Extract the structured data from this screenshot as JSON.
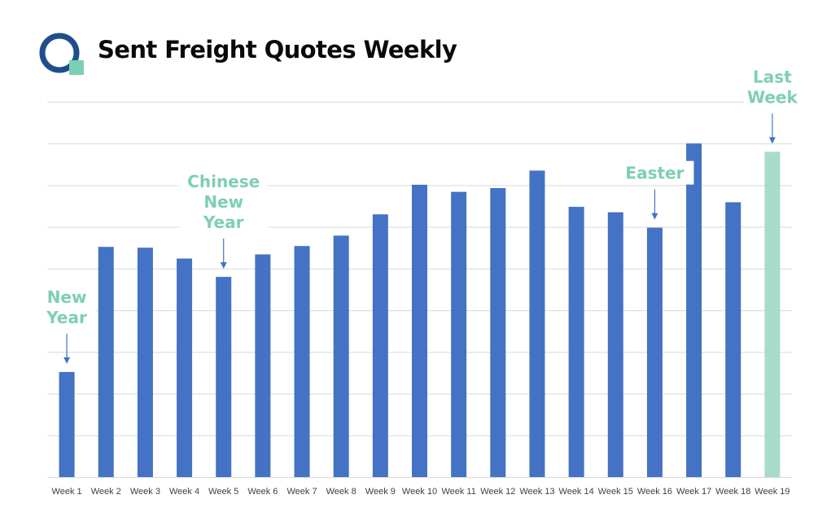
{
  "header": {
    "title": "Sent Freight Quotes Weekly",
    "logo_icon": "q-logo-icon"
  },
  "colors": {
    "bar": "#4472c4",
    "highlight_bar": "#a8dcc8",
    "annotation": "#7dcfb3",
    "arrow": "#4472c4",
    "grid": "#d9d9d9",
    "logo_ring": "#1f4e8c",
    "logo_square": "#7dcfb3"
  },
  "chart_data": {
    "type": "bar",
    "title": "Sent Freight Quotes Weekly",
    "xlabel": "",
    "ylabel": "",
    "y_axis_labels_shown": false,
    "grid": true,
    "ylim": [
      0,
      9
    ],
    "categories": [
      "Week 1",
      "Week 2",
      "Week 3",
      "Week 4",
      "Week 5",
      "Week 6",
      "Week 7",
      "Week 8",
      "Week 9",
      "Week 10",
      "Week 11",
      "Week 12",
      "Week 13",
      "Week 14",
      "Week 15",
      "Week 16",
      "Week 17",
      "Week 18",
      "Week 19"
    ],
    "values": [
      2.52,
      5.52,
      5.5,
      5.24,
      4.8,
      5.34,
      5.54,
      5.79,
      6.3,
      7.01,
      6.84,
      6.93,
      7.35,
      6.48,
      6.35,
      5.98,
      8.0,
      6.59,
      7.8
    ],
    "highlight_index": 18,
    "annotations": [
      {
        "lines": [
          "New",
          "Year"
        ],
        "target": "Week 1"
      },
      {
        "lines": [
          "Chinese",
          "New",
          "Year"
        ],
        "target": "Week 5"
      },
      {
        "lines": [
          "Easter"
        ],
        "target": "Week 16"
      },
      {
        "lines": [
          "Last",
          "Week"
        ],
        "target": "Week 19"
      }
    ]
  }
}
